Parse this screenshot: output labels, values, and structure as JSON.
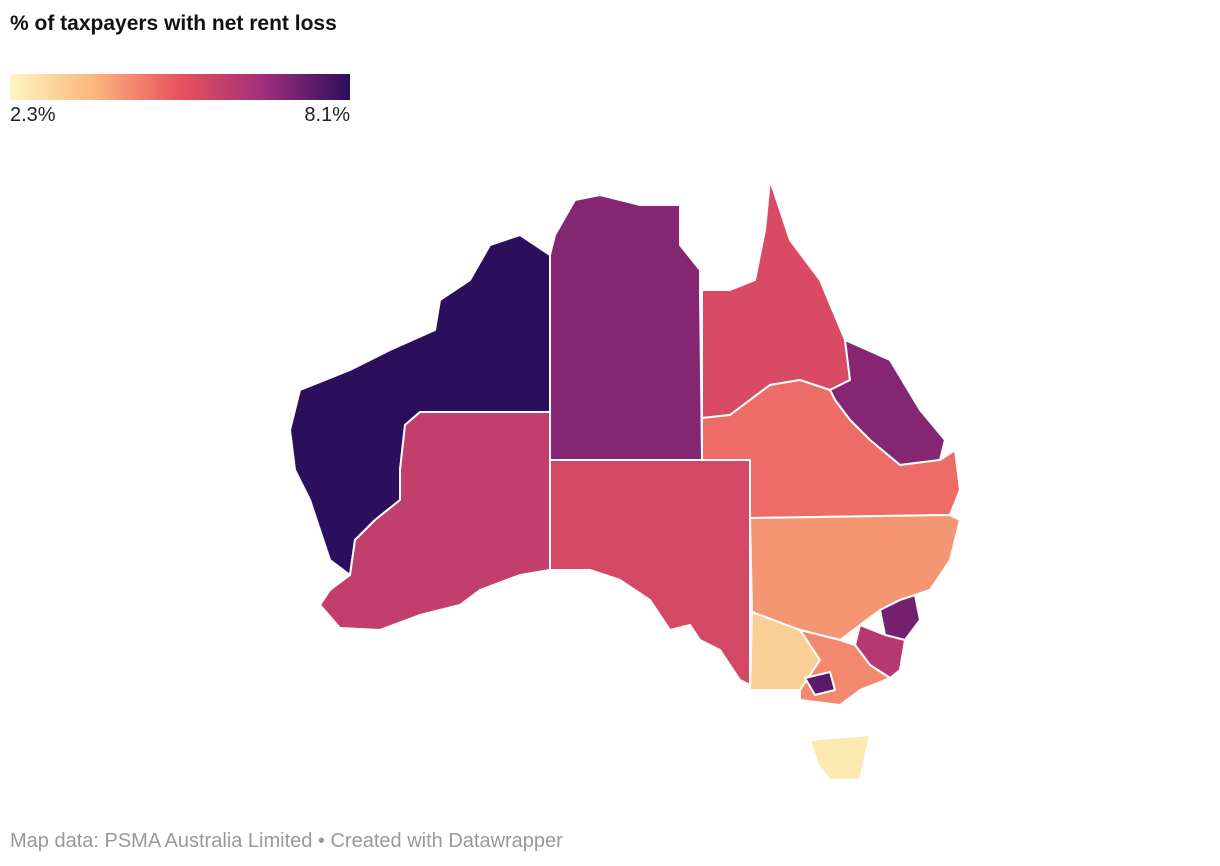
{
  "legend": {
    "title": "% of taxpayers with net rent loss",
    "min": {
      "value": 2.3,
      "label": "2.3%"
    },
    "max": {
      "value": 8.1,
      "label": "8.1%"
    },
    "colors": [
      "#fcf6c0",
      "#fbb57c",
      "#e8525e",
      "#a12d7a",
      "#2b0f5d"
    ]
  },
  "region_values": [
    8.1,
    6.0,
    7.0,
    5.6,
    5.5,
    7.0,
    4.8,
    4.2,
    7.2,
    6.2,
    3.2,
    4.4,
    7.5,
    2.6
  ],
  "footer": "Map data: PSMA Australia Limited • Created with Datawrapper"
}
